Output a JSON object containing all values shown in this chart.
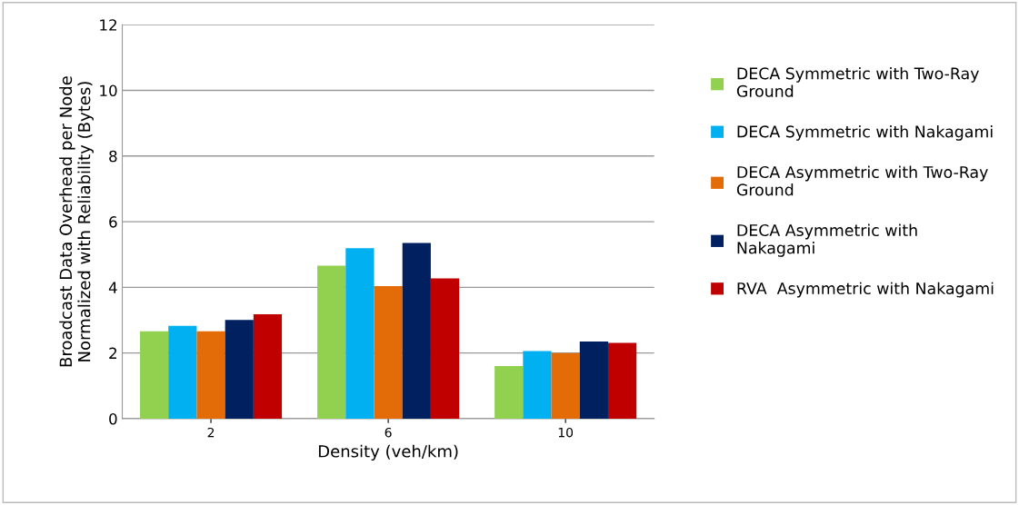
{
  "chart_data": {
    "type": "bar",
    "xlabel": "Density (veh/km)",
    "ylabel": "Broadcast Data Overhead per Node\nNormalized with Reliability (Bytes)",
    "categories": [
      "2",
      "6",
      "10"
    ],
    "series": [
      {
        "name": "DECA Symmetric with Two-Ray\nGround",
        "color": "#92d050",
        "values": [
          2.66,
          4.66,
          1.6
        ]
      },
      {
        "name": "DECA Symmetric with Nakagami",
        "color": "#00b0f0",
        "values": [
          2.83,
          5.19,
          2.06
        ]
      },
      {
        "name": "DECA Asymmetric with Two-Ray\nGround",
        "color": "#e36c09",
        "values": [
          2.66,
          4.04,
          2.0
        ]
      },
      {
        "name": "DECA Asymmetric with\nNakagami",
        "color": "#002060",
        "values": [
          3.01,
          5.35,
          2.35
        ]
      },
      {
        "name": "RVA  Asymmetric with Nakagami",
        "color": "#c00000",
        "values": [
          3.18,
          4.27,
          2.31
        ]
      }
    ],
    "ylim": [
      0,
      12
    ],
    "yticks": [
      0,
      2,
      4,
      6,
      8,
      10,
      12
    ],
    "grid": "y",
    "legend": "right"
  }
}
